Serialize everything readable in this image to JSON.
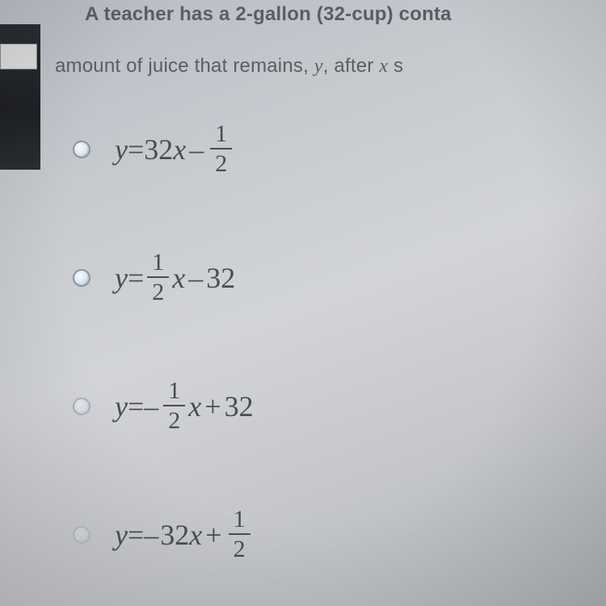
{
  "question": {
    "line1": "A teacher has a 2-gallon (32-cup) conta",
    "line2_pre": "amount of juice that remains, ",
    "line2_y": "y",
    "line2_mid": ", after ",
    "line2_x": "x",
    "line2_post": " s"
  },
  "options": [
    {
      "id": "opt-a",
      "y": "y",
      "eq": " = ",
      "coef": "32",
      "x": "x",
      "op": "–",
      "frac_num": "1",
      "frac_den": "2",
      "layout": "coef_x_minus_frac",
      "radio_fade": "normal"
    },
    {
      "id": "opt-b",
      "y": "y",
      "eq": " = ",
      "frac_num": "1",
      "frac_den": "2",
      "x": "x",
      "op": "–",
      "const": " 32",
      "layout": "frac_x_minus_const",
      "radio_fade": "normal"
    },
    {
      "id": "opt-c",
      "y": "y",
      "eq": " = ",
      "neg": "–",
      "frac_num": "1",
      "frac_den": "2",
      "x": "x",
      "op": "+",
      "const": " 32",
      "layout": "neg_frac_x_plus_const",
      "radio_fade": "faded"
    },
    {
      "id": "opt-d",
      "y": "y",
      "eq": " = ",
      "neg": "–",
      "coef": "32",
      "x": "x",
      "op": "+",
      "frac_num": "1",
      "frac_den": "2",
      "layout": "neg_coef_x_plus_frac",
      "radio_fade": "very-faded"
    }
  ],
  "colors": {
    "text": "#4a4d50",
    "header": "#5a5e62",
    "radio_border": "#8a95a4"
  }
}
